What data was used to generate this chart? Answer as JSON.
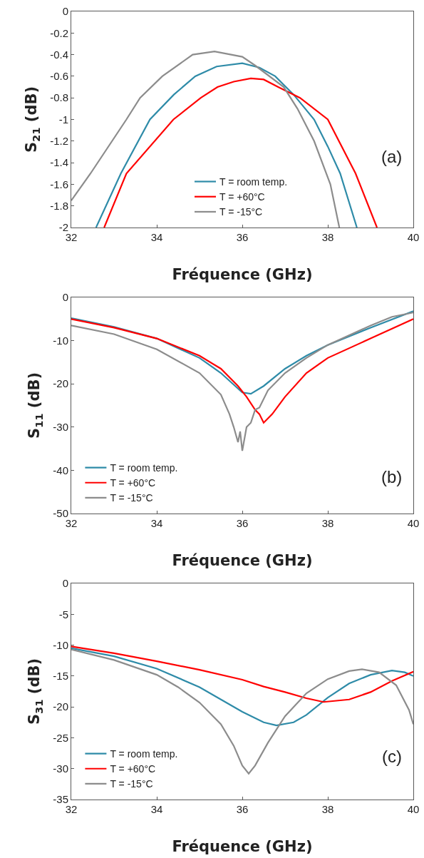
{
  "chart_data": [
    {
      "type": "line",
      "xlabel": "Fréquence (GHz)",
      "ylabel": "S$_{21}$ (dB)",
      "annotations": [
        "(a)"
      ],
      "xlim": [
        32,
        40
      ],
      "xticks": [
        32,
        34,
        36,
        38,
        40
      ],
      "ylim": [
        -2,
        0
      ],
      "yticks": [
        0,
        -0.2,
        -0.4,
        -0.6,
        -0.8,
        -1,
        -1.2,
        -1.4,
        -1.6,
        -1.8,
        -2
      ],
      "grid": false,
      "legend": "bottom",
      "marker": "none",
      "line_style": "solid",
      "series": [
        {
          "name": "T = room temp.",
          "color": "#2e8ba8",
          "x": [
            32.58,
            33.16,
            33.84,
            34.4,
            34.9,
            35.4,
            36.0,
            36.4,
            36.77,
            37.2,
            37.68,
            38.0,
            38.29,
            38.68
          ],
          "values": [
            -2,
            -1.5,
            -1,
            -0.77,
            -0.6,
            -0.51,
            -0.48,
            -0.52,
            -0.6,
            -0.77,
            -1,
            -1.25,
            -1.5,
            -2
          ]
        },
        {
          "name": "T = +60°C",
          "color": "#ff0000",
          "x": [
            32.77,
            33.29,
            34.39,
            35.03,
            35.42,
            35.8,
            36.2,
            36.5,
            36.84,
            37.35,
            38.0,
            38.65,
            39.15
          ],
          "values": [
            -2,
            -1.5,
            -1,
            -0.8,
            -0.7,
            -0.65,
            -0.62,
            -0.63,
            -0.7,
            -0.8,
            -1,
            -1.5,
            -2
          ]
        },
        {
          "name": "T = -15°C",
          "color": "#8c8c8c",
          "x": [
            32,
            32.45,
            33.29,
            33.61,
            34.13,
            34.84,
            35.35,
            36.0,
            36.3,
            36.97,
            37.29,
            37.68,
            38.06,
            38.27
          ],
          "values": [
            -1.75,
            -1.5,
            -1,
            -0.8,
            -0.6,
            -0.4,
            -0.37,
            -0.42,
            -0.5,
            -0.7,
            -0.9,
            -1.2,
            -1.6,
            -2
          ]
        }
      ]
    },
    {
      "type": "line",
      "xlabel": "Fréquence (GHz)",
      "ylabel": "S$_{11}$ (dB)",
      "annotations": [
        "(b)"
      ],
      "xlim": [
        32,
        40
      ],
      "xticks": [
        32,
        34,
        36,
        38,
        40
      ],
      "ylim": [
        -50,
        0
      ],
      "yticks": [
        0,
        -10,
        -20,
        -30,
        -40,
        -50
      ],
      "grid": false,
      "legend": "bottom left",
      "marker": "none",
      "line_style": "solid",
      "series": [
        {
          "name": "T = room temp.",
          "color": "#2e8ba8",
          "x": [
            32,
            33,
            34,
            35,
            35.5,
            36,
            36.2,
            36.5,
            37,
            37.5,
            38,
            39,
            40
          ],
          "values": [
            -4.8,
            -6.8,
            -9.5,
            -14,
            -17.5,
            -22,
            -22.3,
            -20.5,
            -16.5,
            -13.5,
            -11,
            -7,
            -3.2
          ]
        },
        {
          "name": "T = +60°C",
          "color": "#ff0000",
          "x": [
            32,
            33,
            34,
            35,
            35.5,
            35.9,
            36.1,
            36.3,
            36.4,
            36.5,
            36.7,
            37,
            37.5,
            38,
            39,
            40
          ],
          "values": [
            -5,
            -7,
            -9.5,
            -13.5,
            -16.5,
            -20.5,
            -23,
            -26,
            -27,
            -29,
            -27,
            -23,
            -17.5,
            -14,
            -9.5,
            -5
          ]
        },
        {
          "name": "T = -15°C",
          "color": "#8c8c8c",
          "x": [
            32,
            33,
            34,
            35,
            35.5,
            35.7,
            35.8,
            35.9,
            35.95,
            36,
            36.1,
            36.2,
            36.3,
            36.4,
            36.6,
            37,
            37.5,
            38,
            39,
            39.5,
            40
          ],
          "values": [
            -6.5,
            -8.5,
            -12,
            -17.5,
            -22.5,
            -27,
            -30,
            -33.5,
            -31,
            -35.5,
            -30,
            -29,
            -26,
            -25.5,
            -21.5,
            -17.5,
            -14,
            -11,
            -6.5,
            -4.5,
            -3.5
          ]
        }
      ]
    },
    {
      "type": "line",
      "xlabel": "Fréquence (GHz)",
      "ylabel": "S$_{31}$ (dB)",
      "annotations": [
        "(c)"
      ],
      "xlim": [
        32,
        40
      ],
      "xticks": [
        32,
        34,
        36,
        38,
        40
      ],
      "ylim": [
        -35,
        0
      ],
      "yticks": [
        0,
        -5,
        -10,
        -15,
        -20,
        -25,
        -30,
        -35
      ],
      "grid": false,
      "legend": "bottom left",
      "marker": "none",
      "line_style": "solid",
      "series": [
        {
          "name": "T = room temp.",
          "color": "#2e8ba8",
          "x": [
            32,
            33,
            34,
            35,
            35.5,
            36,
            36.5,
            36.8,
            37.2,
            37.5,
            38,
            38.5,
            39,
            39.5,
            39.8,
            40
          ],
          "values": [
            -10.5,
            -11.8,
            -13.8,
            -16.8,
            -18.8,
            -20.8,
            -22.5,
            -23,
            -22.5,
            -21.3,
            -18.5,
            -16.2,
            -14.8,
            -14.1,
            -14.4,
            -15
          ]
        },
        {
          "name": "T = +60°C",
          "color": "#ff0000",
          "x": [
            32,
            33,
            34,
            35,
            36,
            36.5,
            37,
            37.5,
            37.9,
            38.5,
            39,
            39.5,
            40
          ],
          "values": [
            -10.2,
            -11.3,
            -12.6,
            -14,
            -15.6,
            -16.7,
            -17.6,
            -18.6,
            -19.2,
            -18.8,
            -17.6,
            -15.8,
            -14.3
          ]
        },
        {
          "name": "T = -15°C",
          "color": "#8c8c8c",
          "x": [
            32,
            33,
            34,
            34.5,
            35,
            35.5,
            35.8,
            36,
            36.15,
            36.3,
            36.6,
            37,
            37.5,
            38,
            38.5,
            38.8,
            39.2,
            39.6,
            39.9,
            40
          ],
          "values": [
            -10.7,
            -12.4,
            -14.8,
            -16.8,
            -19.3,
            -22.8,
            -26.3,
            -29.5,
            -30.8,
            -29.5,
            -25.8,
            -21.5,
            -17.8,
            -15.5,
            -14.2,
            -13.9,
            -14.4,
            -16.5,
            -20.5,
            -22.8
          ]
        }
      ]
    }
  ]
}
